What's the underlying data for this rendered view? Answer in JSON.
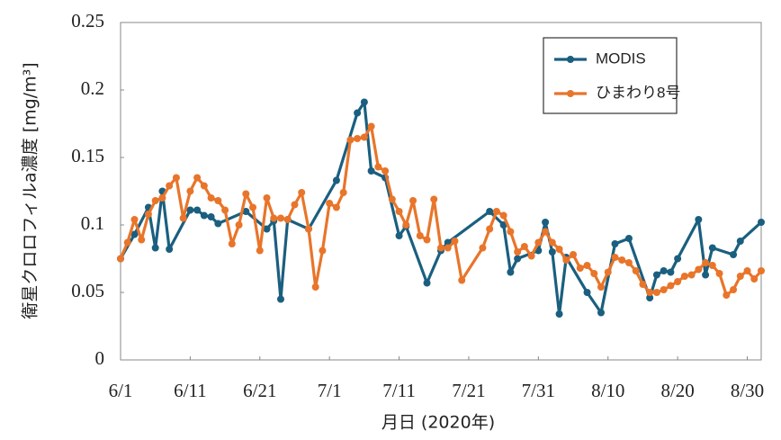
{
  "chart_data": {
    "type": "line",
    "y_label": "衛星クロロフィルa濃度 [mg/m³]",
    "x_label": "月日 (2020年)",
    "xlim": [
      "6/1",
      "9/1"
    ],
    "xticks": [
      "6/1",
      "6/11",
      "6/21",
      "7/1",
      "7/11",
      "7/21",
      "7/31",
      "8/10",
      "8/20",
      "8/30"
    ],
    "ylim": [
      0,
      0.25
    ],
    "yticks": [
      0,
      0.05,
      0.1,
      0.15,
      0.2,
      0.25
    ],
    "grid": false,
    "legend": "upper right",
    "series": [
      {
        "name": "MODIS",
        "color": "#1a5f7f",
        "x": [
          "6/1",
          "6/3",
          "6/5",
          "6/6",
          "6/7",
          "6/8",
          "6/11",
          "6/12",
          "6/13",
          "6/14",
          "6/15",
          "6/19",
          "6/22",
          "6/23",
          "6/24",
          "6/25",
          "6/28",
          "7/2",
          "7/5",
          "7/6",
          "7/7",
          "7/9",
          "7/11",
          "7/12",
          "7/15",
          "7/17",
          "7/18",
          "7/24",
          "7/26",
          "7/27",
          "7/28",
          "7/31",
          "8/1",
          "8/2",
          "8/3",
          "8/4",
          "8/7",
          "8/9",
          "8/11",
          "8/13",
          "8/16",
          "8/17",
          "8/18",
          "8/19",
          "8/20",
          "8/23",
          "8/24",
          "8/25",
          "8/28",
          "8/29",
          "9/1"
        ],
        "values": [
          0.075,
          0.093,
          0.113,
          0.083,
          0.125,
          0.082,
          0.111,
          0.111,
          0.107,
          0.106,
          0.101,
          0.11,
          0.097,
          0.103,
          0.045,
          0.104,
          0.097,
          0.133,
          0.183,
          0.191,
          0.14,
          0.135,
          0.092,
          0.099,
          0.057,
          0.081,
          0.087,
          0.11,
          0.1,
          0.065,
          0.075,
          0.081,
          0.102,
          0.08,
          0.034,
          0.076,
          0.05,
          0.035,
          0.086,
          0.09,
          0.046,
          0.063,
          0.066,
          0.065,
          0.075,
          0.104,
          0.063,
          0.083,
          0.078,
          0.088,
          0.102
        ]
      },
      {
        "name": "ひまわり8号",
        "color": "#e8752a",
        "x": [
          "6/1",
          "6/2",
          "6/3",
          "6/4",
          "6/5",
          "6/6",
          "6/7",
          "6/8",
          "6/9",
          "6/10",
          "6/11",
          "6/12",
          "6/13",
          "6/14",
          "6/15",
          "6/16",
          "6/17",
          "6/18",
          "6/19",
          "6/20",
          "6/21",
          "6/22",
          "6/23",
          "6/24",
          "6/25",
          "6/26",
          "6/27",
          "6/28",
          "6/29",
          "6/30",
          "7/1",
          "7/2",
          "7/3",
          "7/4",
          "7/5",
          "7/6",
          "7/7",
          "7/8",
          "7/9",
          "7/10",
          "7/11",
          "7/12",
          "7/13",
          "7/14",
          "7/15",
          "7/16",
          "7/17",
          "7/18",
          "7/19",
          "7/20",
          "7/23",
          "7/24",
          "7/25",
          "7/26",
          "7/27",
          "7/28",
          "7/29",
          "7/30",
          "7/31",
          "8/1",
          "8/2",
          "8/3",
          "8/4",
          "8/5",
          "8/6",
          "8/7",
          "8/8",
          "8/9",
          "8/10",
          "8/11",
          "8/12",
          "8/13",
          "8/14",
          "8/15",
          "8/16",
          "8/17",
          "8/18",
          "8/19",
          "8/20",
          "8/21",
          "8/22",
          "8/23",
          "8/24",
          "8/25",
          "8/26",
          "8/27",
          "8/28",
          "8/29",
          "8/30",
          "8/31",
          "9/1"
        ],
        "values": [
          0.075,
          0.087,
          0.104,
          0.089,
          0.108,
          0.118,
          0.12,
          0.129,
          0.135,
          0.105,
          0.125,
          0.135,
          0.129,
          0.12,
          0.118,
          0.111,
          0.086,
          0.1,
          0.123,
          0.113,
          0.081,
          0.12,
          0.105,
          0.105,
          0.104,
          0.115,
          0.124,
          0.097,
          0.054,
          0.081,
          0.116,
          0.113,
          0.124,
          0.163,
          0.164,
          0.165,
          0.173,
          0.143,
          0.14,
          0.119,
          0.11,
          0.1,
          0.118,
          0.092,
          0.089,
          0.119,
          0.083,
          0.083,
          0.088,
          0.059,
          0.083,
          0.097,
          0.11,
          0.107,
          0.095,
          0.08,
          0.084,
          0.077,
          0.087,
          0.095,
          0.087,
          0.082,
          0.074,
          0.078,
          0.068,
          0.07,
          0.064,
          0.054,
          0.065,
          0.076,
          0.074,
          0.072,
          0.066,
          0.056,
          0.05,
          0.05,
          0.052,
          0.055,
          0.058,
          0.062,
          0.063,
          0.067,
          0.072,
          0.07,
          0.064,
          0.048,
          0.052,
          0.062,
          0.066,
          0.06,
          0.066
        ]
      }
    ]
  }
}
